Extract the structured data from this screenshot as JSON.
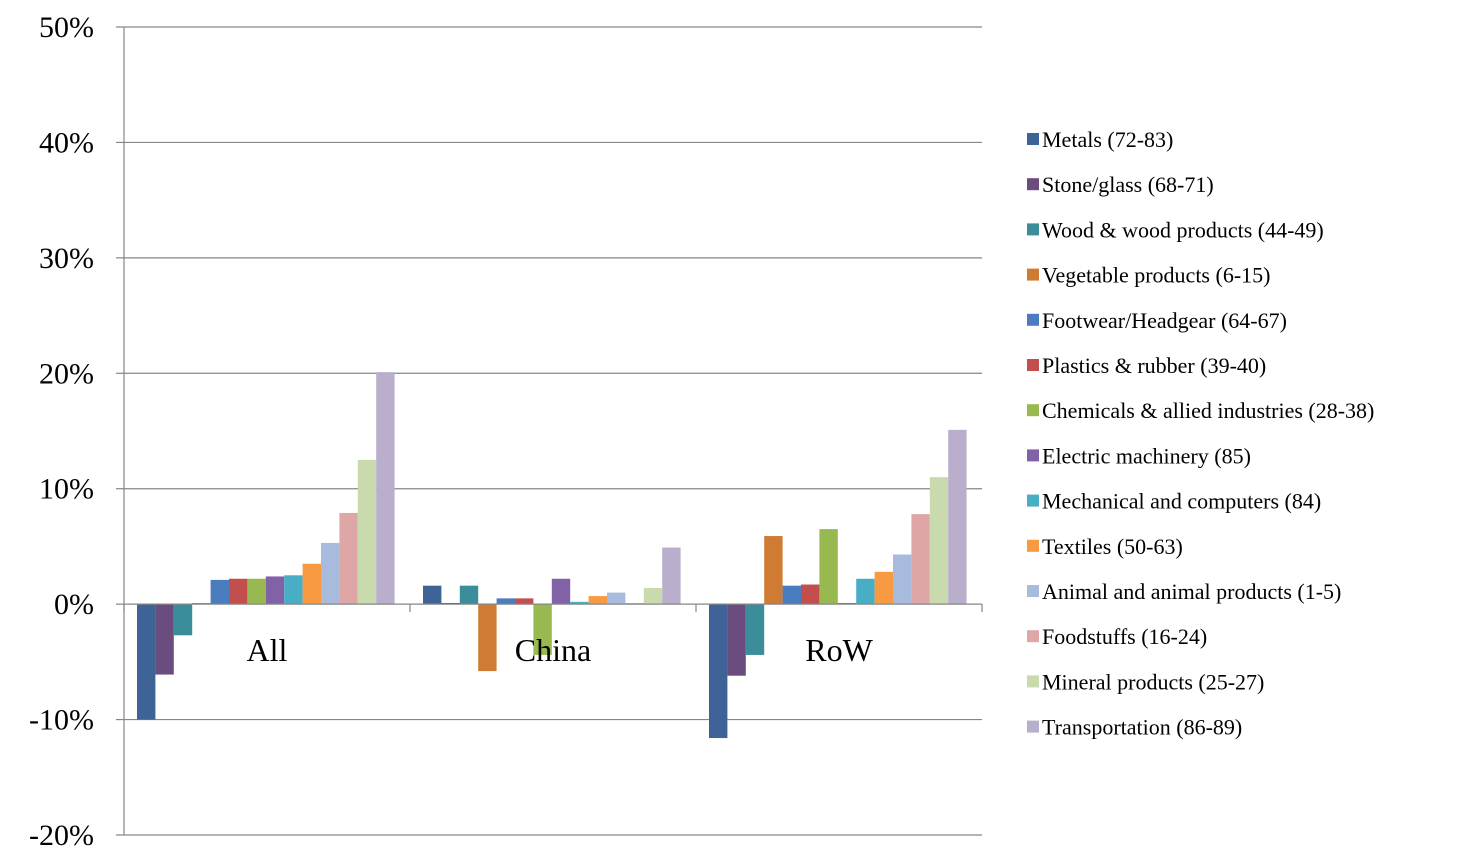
{
  "chart_data": {
    "type": "bar",
    "title": "",
    "xlabel": "",
    "ylabel": "",
    "ylim": [
      -0.2,
      0.5
    ],
    "yticks": [
      -0.2,
      -0.1,
      0,
      0.1,
      0.2,
      0.3,
      0.4,
      0.5
    ],
    "ytick_labels": [
      "-20%",
      "-10%",
      "0%",
      "10%",
      "20%",
      "30%",
      "40%",
      "50%"
    ],
    "grid": true,
    "legend_position": "right",
    "categories": [
      "All",
      "China",
      "RoW"
    ],
    "series": [
      {
        "name": "Metals (72-83)",
        "color": "#3E6497",
        "values": [
          -0.1,
          0.016,
          -0.116
        ]
      },
      {
        "name": "Stone/glass (68-71)",
        "color": "#6A4C7E",
        "values": [
          -0.061,
          0.001,
          -0.062
        ]
      },
      {
        "name": "Wood & wood products (44-49)",
        "color": "#3B8D99",
        "values": [
          -0.027,
          0.016,
          -0.044
        ]
      },
      {
        "name": "Vegetable products (6-15)",
        "color": "#CF7B34",
        "values": [
          0.001,
          -0.058,
          0.059
        ]
      },
      {
        "name": "Footwear/Headgear (64-67)",
        "color": "#4A7CC0",
        "values": [
          0.021,
          0.005,
          0.016
        ]
      },
      {
        "name": "Plastics & rubber (39-40)",
        "color": "#C24E4E",
        "values": [
          0.022,
          0.005,
          0.017
        ]
      },
      {
        "name": "Chemicals & allied industries (28-38)",
        "color": "#97B94F",
        "values": [
          0.022,
          -0.044,
          0.065
        ]
      },
      {
        "name": "Electric machinery (85)",
        "color": "#8262A6",
        "values": [
          0.024,
          0.022,
          0.001
        ]
      },
      {
        "name": "Mechanical and computers (84)",
        "color": "#48AEC5",
        "values": [
          0.025,
          0.002,
          0.022
        ]
      },
      {
        "name": "Textiles (50-63)",
        "color": "#F79A42",
        "values": [
          0.035,
          0.007,
          0.028
        ]
      },
      {
        "name": "Animal and animal products (1-5)",
        "color": "#A9BBDC",
        "values": [
          0.053,
          0.01,
          0.043
        ]
      },
      {
        "name": "Foodstuffs (16-24)",
        "color": "#DEA7A6",
        "values": [
          0.079,
          0.001,
          0.078
        ]
      },
      {
        "name": "Mineral products (25-27)",
        "color": "#C9DAAF",
        "values": [
          0.125,
          0.014,
          0.11
        ]
      },
      {
        "name": "Transportation (86-89)",
        "color": "#B9AFCC",
        "values": [
          0.201,
          0.049,
          0.151
        ]
      }
    ]
  }
}
